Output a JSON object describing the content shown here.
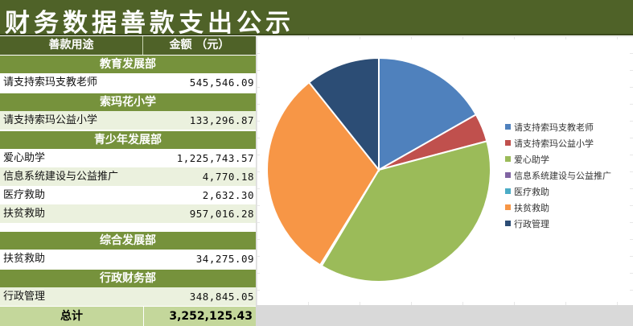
{
  "title": "财务数据善款支出公示",
  "table": {
    "header": {
      "purpose": "善款用途",
      "amount": "金额 （元）"
    },
    "sections": [
      {
        "name": "教育发展部",
        "items": [
          {
            "name": "请支持索玛支教老师",
            "amount": "545,546.09"
          }
        ]
      },
      {
        "name": "索玛花小学",
        "items": [
          {
            "name": "请支持索玛公益小学",
            "amount": "133,296.87"
          }
        ]
      },
      {
        "name": "青少年发展部",
        "items": [
          {
            "name": "爱心助学",
            "amount": "1,225,743.57"
          },
          {
            "name": "信息系统建设与公益推广",
            "amount": "4,770.18"
          },
          {
            "name": "医疗救助",
            "amount": "2,632.30"
          },
          {
            "name": "扶贫救助",
            "amount": "957,016.28"
          }
        ]
      },
      {
        "name": "综合发展部",
        "items": [
          {
            "name": "扶贫救助",
            "amount": "34,275.09"
          }
        ]
      },
      {
        "name": "行政财务部",
        "items": [
          {
            "name": "行政管理",
            "amount": "348,845.05"
          }
        ]
      }
    ],
    "total": {
      "label": "总计",
      "amount": "3,252,125.43"
    }
  },
  "chart_data": {
    "type": "pie",
    "categories": [
      "请支持索玛支教老师",
      "请支持索玛公益小学",
      "爱心助学",
      "信息系统建设与公益推广",
      "医疗救助",
      "扶贫救助",
      "行政管理"
    ],
    "values": [
      545546.09,
      133296.87,
      1225743.57,
      4770.18,
      2632.3,
      991291.37,
      348845.05
    ],
    "colors": [
      "#4f81bd",
      "#c0504d",
      "#9bbb59",
      "#8064a2",
      "#4bacc6",
      "#f79646",
      "#2c4d75"
    ],
    "legend_position": "right"
  }
}
